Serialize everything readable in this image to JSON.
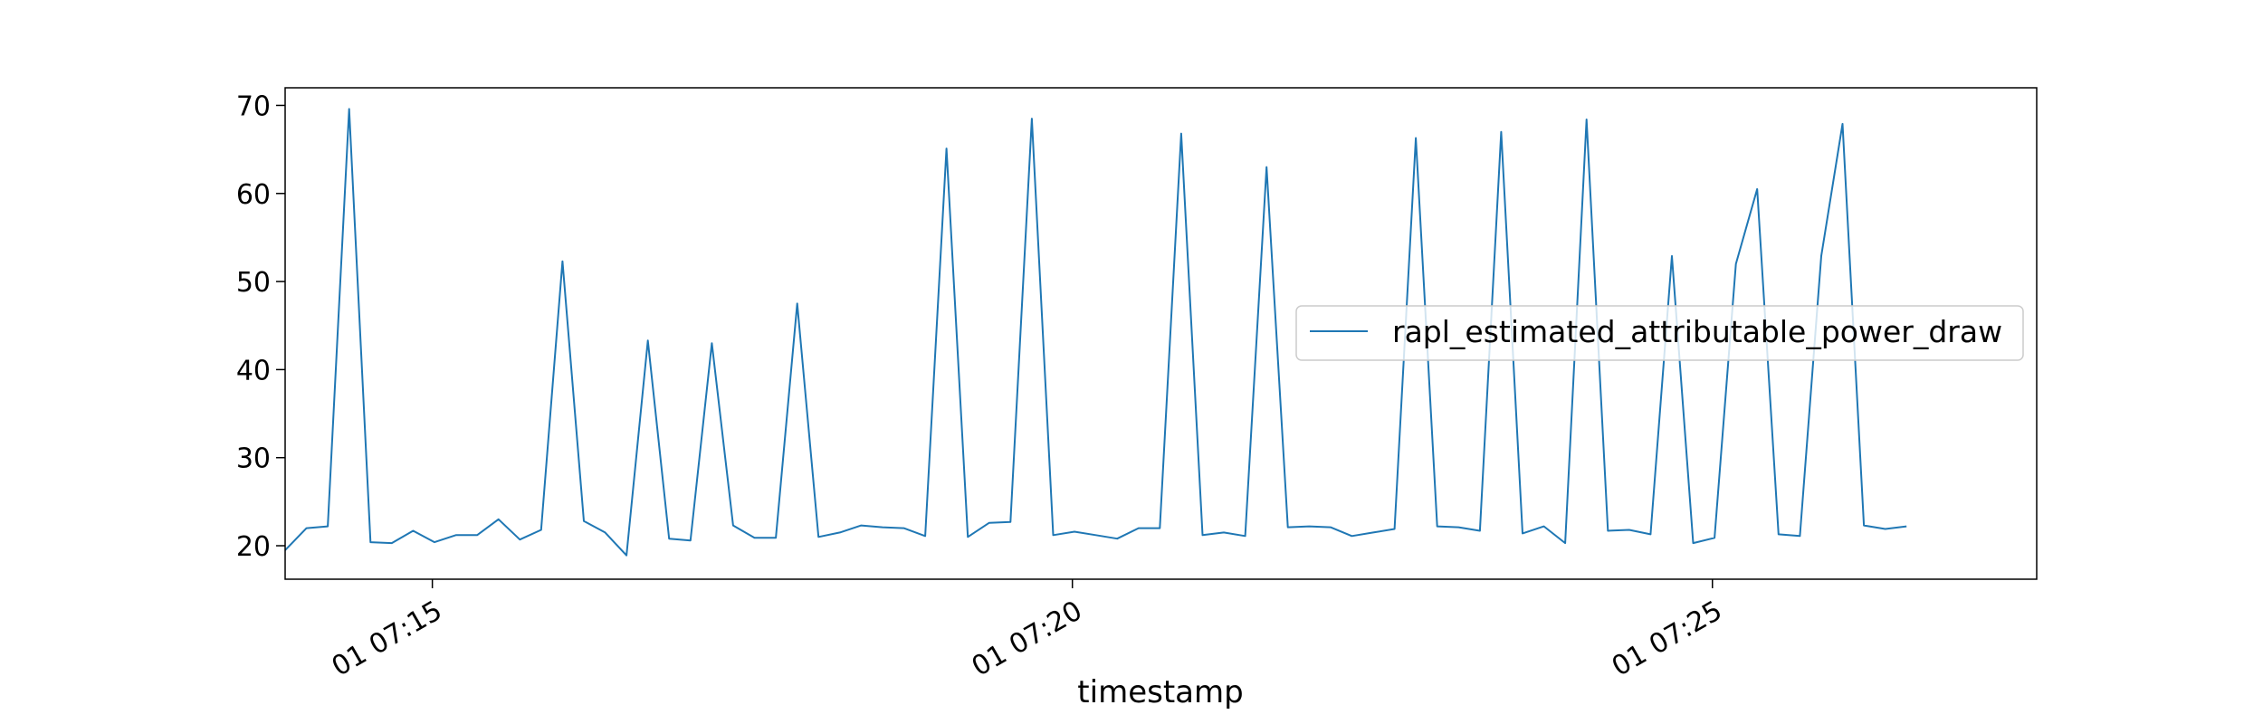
{
  "chart_data": {
    "type": "line",
    "title": "",
    "xlabel": "timestamp",
    "ylabel": "",
    "x_start": "01 07:13:51",
    "x_step_seconds": 10,
    "x_ticks": [
      "01 07:15",
      "01 07:20",
      "01 07:25"
    ],
    "xlim": [
      "01 07:13:51",
      "01 07:27:32"
    ],
    "y_ticks": [
      20,
      30,
      40,
      50,
      60,
      70
    ],
    "ylim": [
      16.2,
      72.0
    ],
    "grid": false,
    "legend_position": "center-right",
    "series": [
      {
        "name": "rapl_estimated_attributable_power_draw",
        "color": "#1f77b4",
        "values": [
          19.5,
          22.0,
          22.2,
          69.6,
          20.4,
          20.3,
          21.7,
          20.4,
          21.2,
          21.2,
          23.0,
          20.7,
          21.8,
          52.3,
          22.8,
          21.5,
          18.9,
          43.3,
          20.8,
          20.6,
          43.0,
          22.3,
          20.9,
          20.9,
          47.5,
          21.0,
          21.5,
          22.3,
          22.1,
          22.0,
          21.1,
          65.1,
          21.0,
          22.6,
          22.7,
          68.5,
          21.2,
          21.6,
          21.2,
          20.8,
          22.0,
          22.0,
          66.8,
          21.2,
          21.5,
          21.1,
          63.0,
          22.1,
          22.2,
          22.1,
          21.1,
          21.5,
          21.9,
          66.3,
          22.2,
          22.1,
          21.7,
          67.0,
          21.4,
          22.2,
          20.3,
          68.4,
          21.7,
          21.8,
          21.3,
          52.9,
          20.3,
          20.9,
          52.0,
          60.5,
          21.3,
          21.1,
          52.9,
          67.9,
          22.3,
          21.9,
          22.2
        ]
      }
    ]
  }
}
